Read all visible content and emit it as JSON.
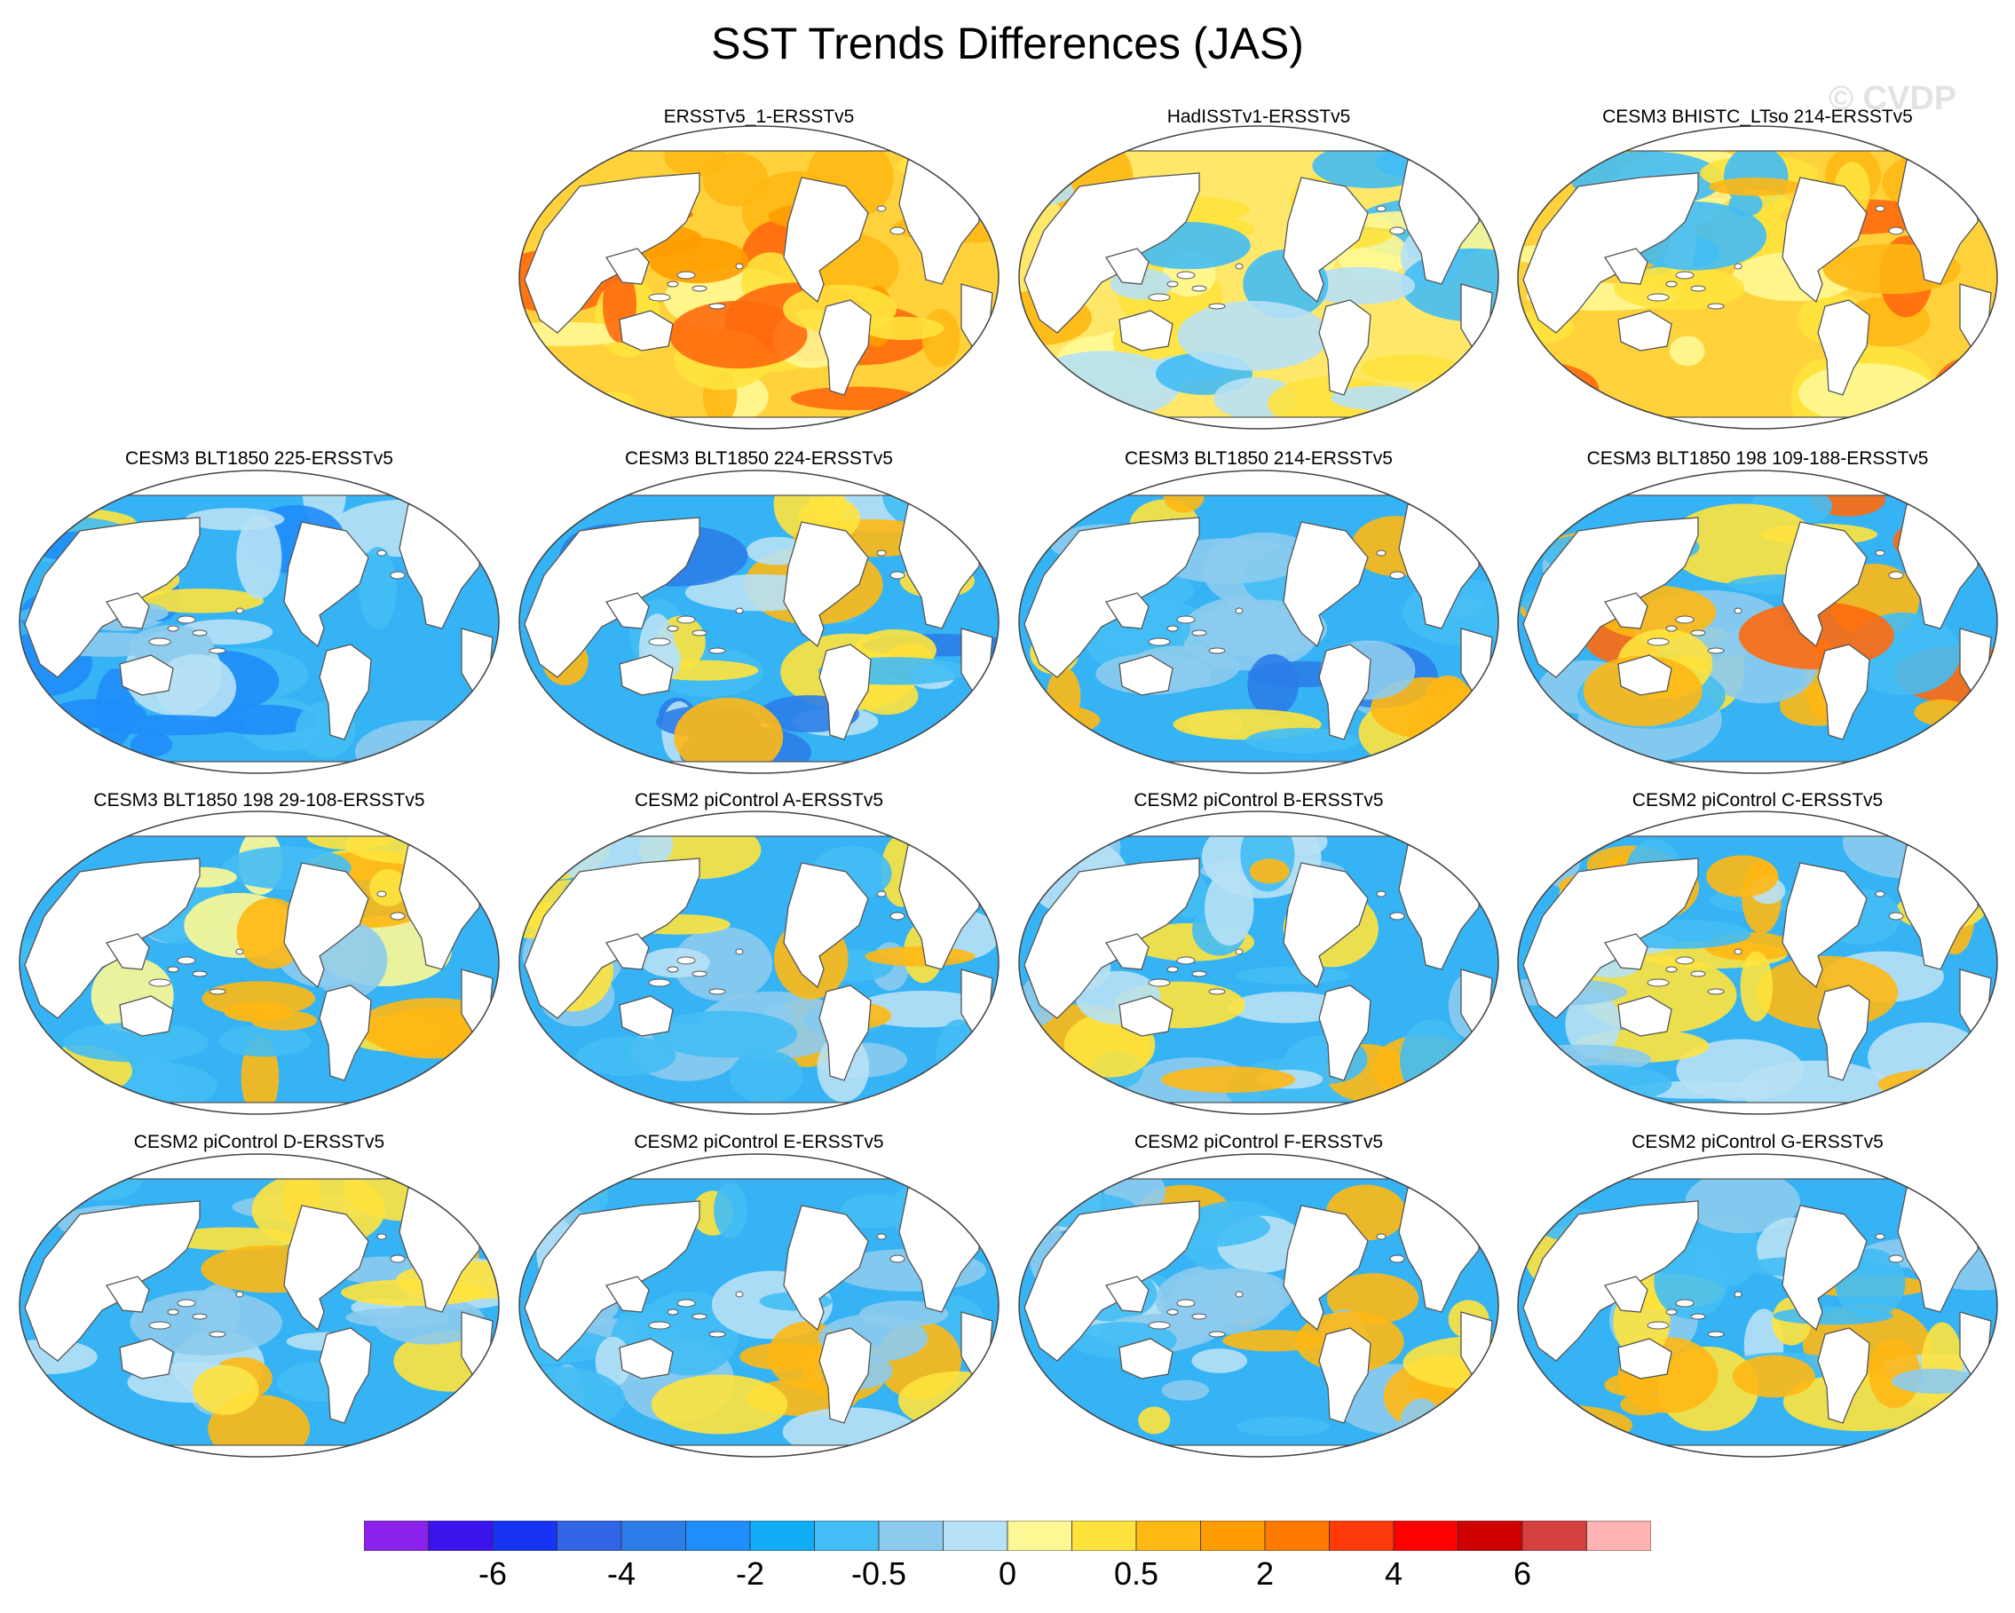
{
  "title": "SST Trends Differences (JAS)",
  "watermark": "© CVDP",
  "panels": [
    {
      "title": "ERSSTv5_1-ERSSTv5",
      "ramp": [
        "#ffb814",
        "#ff9d00",
        "#fff894",
        "#ffe33d",
        "#ff6a0e"
      ],
      "base": "#ffd13a"
    },
    {
      "title": "HadISSTv1-ERSSTv5",
      "ramp": [
        "#ffe33d",
        "#fff894",
        "#b7e1f5",
        "#ffb814",
        "#42bdf5"
      ],
      "base": "#ffe76a"
    },
    {
      "title": "CESM3 BHISTC_LTso 214-ERSSTv5",
      "ramp": [
        "#ffb814",
        "#ffe33d",
        "#42bdf5",
        "#fff894",
        "#ff6a0e"
      ],
      "base": "#ffd13a"
    },
    {
      "title": "CESM3 BLT1850 225-ERSSTv5",
      "ramp": [
        "#42bdf5",
        "#8ccbee",
        "#b7e1f5",
        "#ffe33d",
        "#1f8dfa"
      ],
      "base": "#35b3f5"
    },
    {
      "title": "CESM3 BLT1850 224-ERSSTv5",
      "ramp": [
        "#42bdf5",
        "#b7e1f5",
        "#ffe33d",
        "#ffb814",
        "#2b7de8"
      ],
      "base": "#35b3f5"
    },
    {
      "title": "CESM3 BLT1850 214-ERSSTv5",
      "ramp": [
        "#42bdf5",
        "#8ccbee",
        "#ffe33d",
        "#ffb814",
        "#2b7de8"
      ],
      "base": "#35b3f5"
    },
    {
      "title": "CESM3 BLT1850 198 109-188-ERSSTv5",
      "ramp": [
        "#42bdf5",
        "#8ccbee",
        "#ffe33d",
        "#ffb814",
        "#ff6a0e"
      ],
      "base": "#35b3f5"
    },
    {
      "title": "CESM3 BLT1850 198 29-108-ERSSTv5",
      "ramp": [
        "#42bdf5",
        "#8ccbee",
        "#ffe33d",
        "#ffb814",
        "#fff894"
      ],
      "base": "#35b3f5"
    },
    {
      "title": "CESM2 piControl A-ERSSTv5",
      "ramp": [
        "#42bdf5",
        "#8ccbee",
        "#b7e1f5",
        "#ffe33d",
        "#ffb814"
      ],
      "base": "#35b3f5"
    },
    {
      "title": "CESM2 piControl B-ERSSTv5",
      "ramp": [
        "#42bdf5",
        "#8ccbee",
        "#b7e1f5",
        "#ffe33d",
        "#ffb814"
      ],
      "base": "#35b3f5"
    },
    {
      "title": "CESM2 piControl C-ERSSTv5",
      "ramp": [
        "#42bdf5",
        "#8ccbee",
        "#ffe33d",
        "#ffb814",
        "#b7e1f5"
      ],
      "base": "#35b3f5"
    },
    {
      "title": "CESM2 piControl D-ERSSTv5",
      "ramp": [
        "#42bdf5",
        "#8ccbee",
        "#b7e1f5",
        "#ffe33d",
        "#ffb814"
      ],
      "base": "#35b3f5"
    },
    {
      "title": "CESM2 piControl E-ERSSTv5",
      "ramp": [
        "#42bdf5",
        "#8ccbee",
        "#ffe33d",
        "#ffb814",
        "#b7e1f5"
      ],
      "base": "#35b3f5"
    },
    {
      "title": "CESM2 piControl F-ERSSTv5",
      "ramp": [
        "#42bdf5",
        "#8ccbee",
        "#ffe33d",
        "#ffb814",
        "#b7e1f5"
      ],
      "base": "#35b3f5"
    },
    {
      "title": "CESM2 piControl G-ERSSTv5",
      "ramp": [
        "#42bdf5",
        "#8ccbee",
        "#ffe33d",
        "#ffb814",
        "#b7e1f5"
      ],
      "base": "#35b3f5"
    }
  ],
  "colorbar": {
    "colors": [
      "#8a22eb",
      "#3b13ec",
      "#1733f3",
      "#3464e6",
      "#2b7de8",
      "#1f8dfa",
      "#10adf6",
      "#42bdf5",
      "#8ccbee",
      "#b7e1f5",
      "#fff894",
      "#ffe33d",
      "#ffb814",
      "#ff9d00",
      "#ff7a00",
      "#ff3a0b",
      "#ff0000",
      "#cf0000",
      "#d53f3f",
      "#ffb3b3"
    ],
    "labels": [
      "-6",
      "-4",
      "-2",
      "-0.5",
      "0",
      "0.5",
      "2",
      "4",
      "6"
    ],
    "label_boundaries": [
      2,
      4,
      6,
      8,
      10,
      12,
      14,
      16,
      18
    ]
  },
  "land_color": "#ffffff",
  "coast_color": "#555555"
}
